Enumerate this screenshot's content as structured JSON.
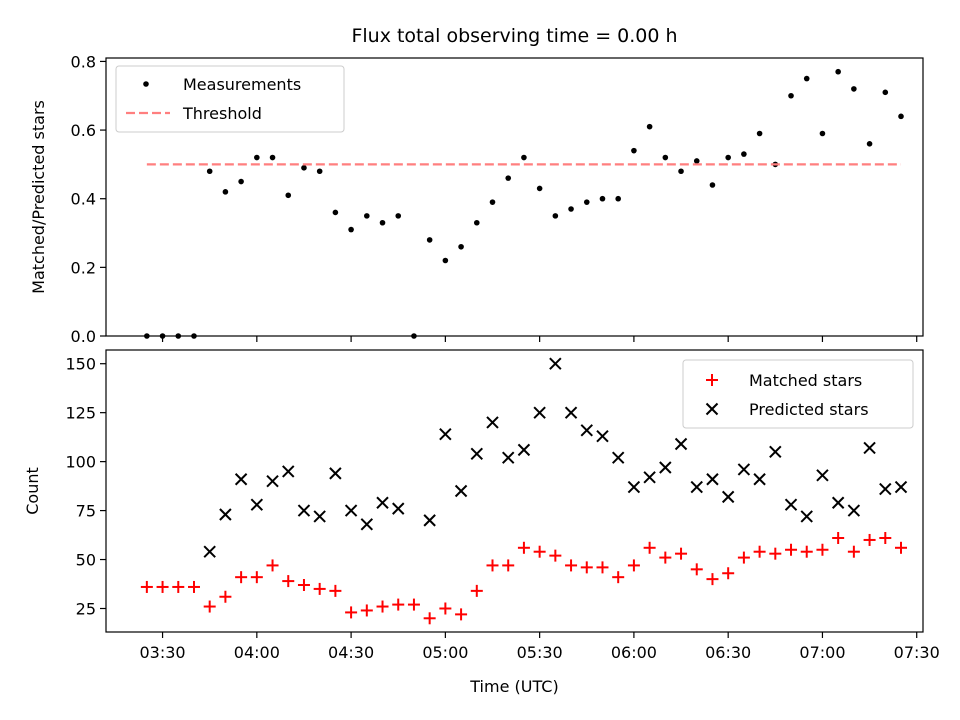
{
  "chart_data": [
    {
      "type": "scatter",
      "title": "Flux total observing time = 0.00 h",
      "xlabel": "",
      "ylabel": "Matched/Predicted stars",
      "xlim": [
        "03:12",
        "07:32"
      ],
      "ylim": [
        0,
        0.81
      ],
      "yticks": [
        0.0,
        0.2,
        0.4,
        0.6,
        0.8
      ],
      "ytick_labels": [
        "0.0",
        "0.2",
        "0.4",
        "0.6",
        "0.8"
      ],
      "legend": {
        "position": "top-left",
        "entries": [
          "Measurements",
          "Threshold"
        ]
      },
      "series": [
        {
          "name": "Measurements",
          "marker": "dot",
          "color": "#000000",
          "points": [
            [
              "03:25",
              0.0
            ],
            [
              "03:30",
              0.0
            ],
            [
              "03:35",
              0.0
            ],
            [
              "03:40",
              0.0
            ],
            [
              "03:45",
              0.48
            ],
            [
              "03:50",
              0.42
            ],
            [
              "03:55",
              0.45
            ],
            [
              "04:00",
              0.52
            ],
            [
              "04:05",
              0.52
            ],
            [
              "04:10",
              0.41
            ],
            [
              "04:15",
              0.49
            ],
            [
              "04:20",
              0.48
            ],
            [
              "04:25",
              0.36
            ],
            [
              "04:30",
              0.31
            ],
            [
              "04:35",
              0.35
            ],
            [
              "04:40",
              0.33
            ],
            [
              "04:45",
              0.35
            ],
            [
              "04:50",
              0.0
            ],
            [
              "04:55",
              0.28
            ],
            [
              "05:00",
              0.22
            ],
            [
              "05:05",
              0.26
            ],
            [
              "05:10",
              0.33
            ],
            [
              "05:15",
              0.39
            ],
            [
              "05:20",
              0.46
            ],
            [
              "05:25",
              0.52
            ],
            [
              "05:30",
              0.43
            ],
            [
              "05:35",
              0.35
            ],
            [
              "05:40",
              0.37
            ],
            [
              "05:45",
              0.39
            ],
            [
              "05:50",
              0.4
            ],
            [
              "05:55",
              0.4
            ],
            [
              "06:00",
              0.54
            ],
            [
              "06:05",
              0.61
            ],
            [
              "06:10",
              0.52
            ],
            [
              "06:15",
              0.48
            ],
            [
              "06:20",
              0.51
            ],
            [
              "06:25",
              0.44
            ],
            [
              "06:30",
              0.52
            ],
            [
              "06:35",
              0.53
            ],
            [
              "06:40",
              0.59
            ],
            [
              "06:45",
              0.5
            ],
            [
              "06:50",
              0.7
            ],
            [
              "06:55",
              0.75
            ],
            [
              "07:00",
              0.59
            ],
            [
              "07:05",
              0.77
            ],
            [
              "07:10",
              0.72
            ],
            [
              "07:15",
              0.56
            ],
            [
              "07:20",
              0.71
            ],
            [
              "07:25",
              0.64
            ]
          ]
        },
        {
          "name": "Threshold",
          "marker": "dashed-line",
          "color": "#ff7f7f",
          "points": [
            [
              "03:25",
              0.5
            ],
            [
              "07:25",
              0.5
            ]
          ]
        }
      ]
    },
    {
      "type": "scatter",
      "title": "",
      "xlabel": "Time (UTC)",
      "ylabel": "Count",
      "xlim": [
        "03:12",
        "07:32"
      ],
      "ylim": [
        13,
        157
      ],
      "yticks": [
        25,
        50,
        75,
        100,
        125,
        150
      ],
      "ytick_labels": [
        "25",
        "50",
        "75",
        "100",
        "125",
        "150"
      ],
      "xtick_labels": [
        "03:30",
        "04:00",
        "04:30",
        "05:00",
        "05:30",
        "06:00",
        "06:30",
        "07:00",
        "07:30"
      ],
      "legend": {
        "position": "top-right",
        "entries": [
          "Matched stars",
          "Predicted stars"
        ]
      },
      "x": [
        "03:25",
        "03:30",
        "03:35",
        "03:40",
        "03:45",
        "03:50",
        "03:55",
        "04:00",
        "04:05",
        "04:10",
        "04:15",
        "04:20",
        "04:25",
        "04:30",
        "04:35",
        "04:40",
        "04:45",
        "04:50",
        "04:55",
        "05:00",
        "05:05",
        "05:10",
        "05:15",
        "05:20",
        "05:25",
        "05:30",
        "05:35",
        "05:40",
        "05:45",
        "05:50",
        "05:55",
        "06:00",
        "06:05",
        "06:10",
        "06:15",
        "06:20",
        "06:25",
        "06:30",
        "06:35",
        "06:40",
        "06:45",
        "06:50",
        "06:55",
        "07:00",
        "07:05",
        "07:10",
        "07:15",
        "07:20",
        "07:25"
      ],
      "series": [
        {
          "name": "Matched stars",
          "marker": "plus",
          "color": "#ff0000",
          "values": [
            36,
            36,
            36,
            36,
            26,
            31,
            41,
            41,
            47,
            39,
            37,
            35,
            34,
            23,
            24,
            26,
            27,
            27,
            20,
            25,
            22,
            34,
            47,
            47,
            56,
            54,
            52,
            47,
            46,
            46,
            41,
            47,
            56,
            51,
            53,
            45,
            40,
            43,
            51,
            54,
            53,
            55,
            54,
            55,
            61,
            54,
            60,
            61,
            56
          ]
        },
        {
          "name": "Predicted stars",
          "marker": "x",
          "color": "#000000",
          "values": [
            null,
            null,
            null,
            null,
            54,
            73,
            91,
            78,
            90,
            95,
            75,
            72,
            94,
            75,
            68,
            79,
            76,
            null,
            70,
            114,
            85,
            104,
            120,
            102,
            106,
            125,
            150,
            125,
            116,
            113,
            102,
            87,
            92,
            97,
            109,
            87,
            91,
            82,
            96,
            91,
            105,
            78,
            72,
            93,
            79,
            75,
            107,
            86,
            87
          ]
        }
      ]
    }
  ]
}
